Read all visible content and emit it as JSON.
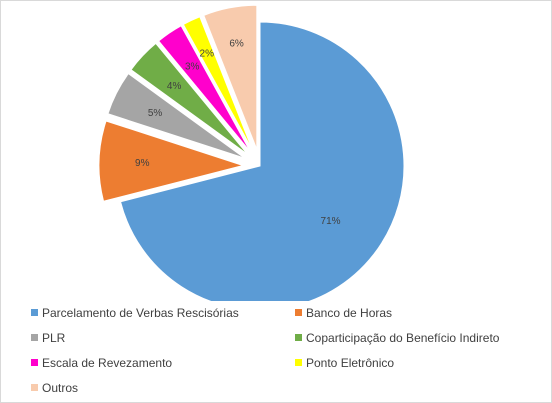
{
  "chart_data": {
    "type": "pie",
    "title": "",
    "slices": [
      {
        "name": "Parcelamento de Verbas Rescisórias",
        "value": 71,
        "label": "71%",
        "color": "#5b9bd5"
      },
      {
        "name": "Banco de Horas",
        "value": 9,
        "label": "9%",
        "color": "#ed7d31"
      },
      {
        "name": "PLR",
        "value": 5,
        "label": "5%",
        "color": "#a5a5a5"
      },
      {
        "name": "Coparticipação do Benefício Indireto",
        "value": 4,
        "label": "4%",
        "color": "#70ad47"
      },
      {
        "name": "Escala de Revezamento",
        "value": 3,
        "label": "3%",
        "color": "#ff00cc"
      },
      {
        "name": "Ponto Eletrônico",
        "value": 2,
        "label": "2%",
        "color": "#ffff00"
      },
      {
        "name": "Outros",
        "value": 6,
        "label": "6%",
        "color": "#f8cbad"
      }
    ],
    "legend_position": "bottom",
    "exploded": true
  }
}
